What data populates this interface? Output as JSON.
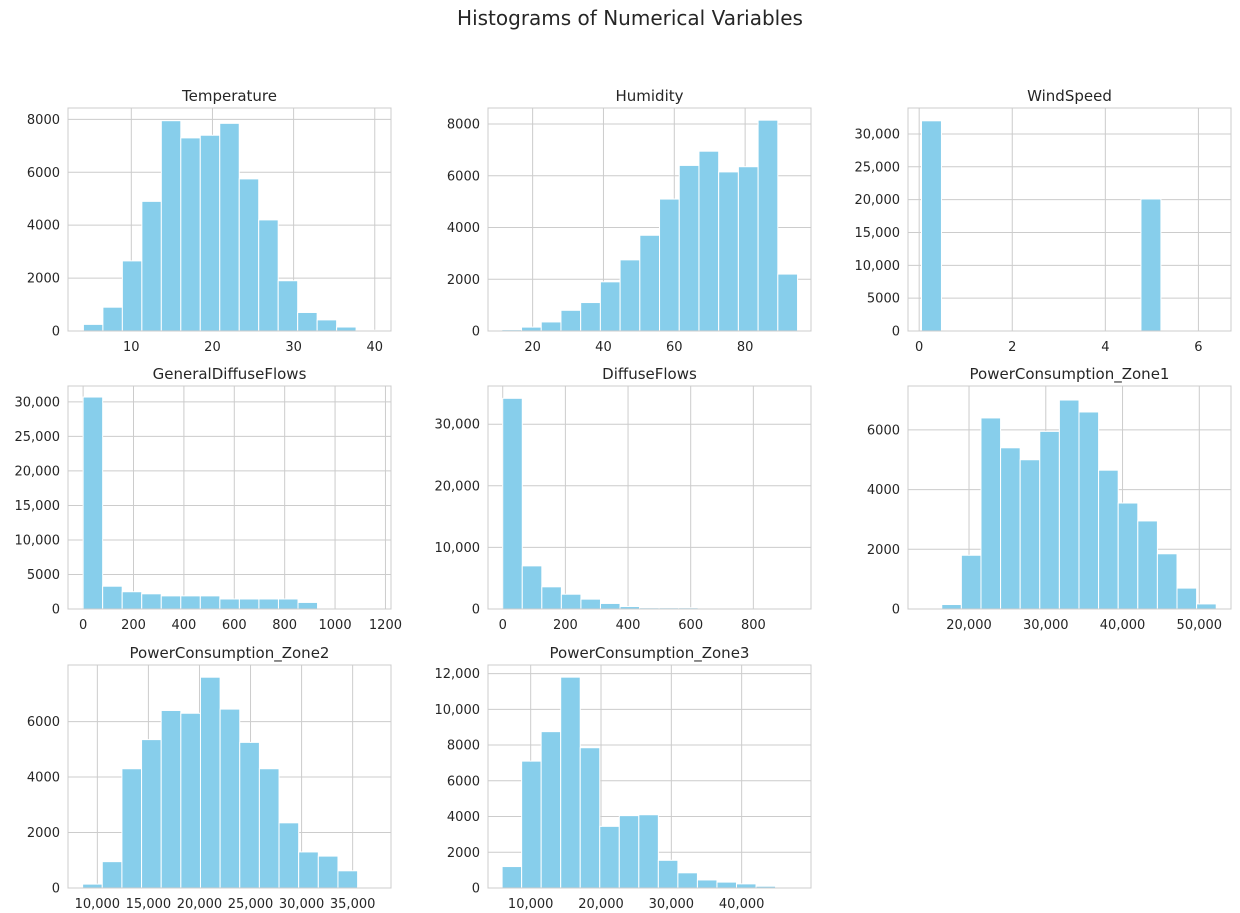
{
  "chart_data": {
    "type": "bar",
    "title": "Histograms of Numerical Variables",
    "bar_color": "#87CEEB",
    "bar_edge_color": "#ffffff",
    "grid_color": "#cccccc",
    "text_color": "#262626",
    "grid": true,
    "subplots": [
      {
        "title": "Temperature",
        "bins": 15,
        "range": [
          4.1,
          40.1
        ],
        "counts": [
          250,
          900,
          2650,
          4900,
          7950,
          7300,
          7400,
          7850,
          5750,
          4200,
          1900,
          700,
          420,
          150,
          30
        ],
        "xlim": [
          2.2,
          42.0
        ],
        "ylim": [
          0,
          8430
        ],
        "xticks": [
          {
            "v": 10,
            "label": "10"
          },
          {
            "v": 20,
            "label": "20"
          },
          {
            "v": 30,
            "label": "30"
          },
          {
            "v": 40,
            "label": "40"
          }
        ],
        "yticks": [
          {
            "v": 0,
            "label": "0"
          },
          {
            "v": 2000,
            "label": "2000"
          },
          {
            "v": 4000,
            "label": "4000"
          },
          {
            "v": 6000,
            "label": "6000"
          },
          {
            "v": 8000,
            "label": "8000"
          }
        ]
      },
      {
        "title": "Humidity",
        "bins": 15,
        "range": [
          11.3,
          94.8
        ],
        "counts": [
          50,
          150,
          350,
          800,
          1100,
          1900,
          2750,
          3700,
          5100,
          6400,
          6950,
          6150,
          6350,
          8150,
          2200
        ],
        "xlim": [
          7.4,
          98.6
        ],
        "ylim": [
          0,
          8620
        ],
        "xticks": [
          {
            "v": 20,
            "label": "20"
          },
          {
            "v": 40,
            "label": "40"
          },
          {
            "v": 60,
            "label": "60"
          },
          {
            "v": 80,
            "label": "80"
          }
        ],
        "yticks": [
          {
            "v": 0,
            "label": "0"
          },
          {
            "v": 2000,
            "label": "2000"
          },
          {
            "v": 4000,
            "label": "4000"
          },
          {
            "v": 6000,
            "label": "6000"
          },
          {
            "v": 8000,
            "label": "8000"
          }
        ]
      },
      {
        "title": "WindSpeed",
        "bins": 15,
        "range": [
          0.05,
          6.48
        ],
        "counts": [
          32000,
          5,
          0,
          0,
          0,
          0,
          0,
          0,
          0,
          0,
          0,
          20100,
          0,
          0,
          0
        ],
        "xlim": [
          -0.24,
          6.7
        ],
        "ylim": [
          0,
          33950
        ],
        "xticks": [
          {
            "v": 0,
            "label": "0"
          },
          {
            "v": 2,
            "label": "2"
          },
          {
            "v": 4,
            "label": "4"
          },
          {
            "v": 6,
            "label": "6"
          }
        ],
        "yticks": [
          {
            "v": 0,
            "label": "0"
          },
          {
            "v": 5000,
            "label": "5000"
          },
          {
            "v": 10000,
            "label": "10,000"
          },
          {
            "v": 15000,
            "label": "15,000"
          },
          {
            "v": 20000,
            "label": "20,000"
          },
          {
            "v": 25000,
            "label": "25,000"
          },
          {
            "v": 30000,
            "label": "30,000"
          }
        ]
      },
      {
        "title": "GeneralDiffuseFlows",
        "bins": 15,
        "range": [
          0.004,
          1163
        ],
        "counts": [
          30700,
          3300,
          2500,
          2200,
          1900,
          1900,
          1900,
          1450,
          1450,
          1450,
          1450,
          950,
          10,
          5,
          3
        ],
        "xlim": [
          -60,
          1222
        ],
        "ylim": [
          0,
          32300
        ],
        "xticks": [
          {
            "v": 0,
            "label": "0"
          },
          {
            "v": 200,
            "label": "200"
          },
          {
            "v": 400,
            "label": "400"
          },
          {
            "v": 600,
            "label": "600"
          },
          {
            "v": 800,
            "label": "800"
          },
          {
            "v": 1000,
            "label": "1000"
          },
          {
            "v": 1200,
            "label": "1200"
          }
        ],
        "yticks": [
          {
            "v": 0,
            "label": "0"
          },
          {
            "v": 5000,
            "label": "5000"
          },
          {
            "v": 10000,
            "label": "10,000"
          },
          {
            "v": 15000,
            "label": "15,000"
          },
          {
            "v": 20000,
            "label": "20,000"
          },
          {
            "v": 25000,
            "label": "25,000"
          },
          {
            "v": 30000,
            "label": "30,000"
          }
        ]
      },
      {
        "title": "DiffuseFlows",
        "bins": 15,
        "range": [
          0.011,
          936
        ],
        "counts": [
          34200,
          7000,
          3600,
          2400,
          1600,
          900,
          400,
          200,
          200,
          200,
          50,
          20,
          10,
          5,
          3
        ],
        "xlim": [
          -47,
          984
        ],
        "ylim": [
          0,
          36200
        ],
        "xticks": [
          {
            "v": 0,
            "label": "0"
          },
          {
            "v": 200,
            "label": "200"
          },
          {
            "v": 400,
            "label": "400"
          },
          {
            "v": 600,
            "label": "600"
          },
          {
            "v": 800,
            "label": "800"
          }
        ],
        "yticks": [
          {
            "v": 0,
            "label": "0"
          },
          {
            "v": 10000,
            "label": "10,000"
          },
          {
            "v": 20000,
            "label": "20,000"
          },
          {
            "v": 30000,
            "label": "30,000"
          }
        ]
      },
      {
        "title": "PowerConsumption_Zone1",
        "bins": 15,
        "range": [
          13895,
          52204
        ],
        "counts": [
          5,
          150,
          1800,
          6400,
          5400,
          5000,
          5950,
          7000,
          6600,
          4650,
          3550,
          2950,
          1850,
          700,
          170
        ],
        "xlim": [
          12050,
          54130
        ],
        "ylim": [
          0,
          7470
        ],
        "xticks": [
          {
            "v": 20000,
            "label": "20,000"
          },
          {
            "v": 30000,
            "label": "30,000"
          },
          {
            "v": 40000,
            "label": "40,000"
          },
          {
            "v": 50000,
            "label": "50,000"
          }
        ],
        "yticks": [
          {
            "v": 0,
            "label": "0"
          },
          {
            "v": 2000,
            "label": "2000"
          },
          {
            "v": 4000,
            "label": "4000"
          },
          {
            "v": 6000,
            "label": "6000"
          }
        ]
      },
      {
        "title": "PowerConsumption_Zone2",
        "bins": 15,
        "range": [
          8560,
          37408
        ],
        "counts": [
          140,
          950,
          4300,
          5350,
          6400,
          6300,
          7600,
          6450,
          5250,
          4300,
          2350,
          1300,
          1150,
          620,
          10
        ],
        "xlim": [
          7127,
          38755
        ],
        "ylim": [
          0,
          8040
        ],
        "xticks": [
          {
            "v": 10000,
            "label": "10,000"
          },
          {
            "v": 15000,
            "label": "15,000"
          },
          {
            "v": 20000,
            "label": "20,000"
          },
          {
            "v": 25000,
            "label": "25,000"
          },
          {
            "v": 30000,
            "label": "30,000"
          },
          {
            "v": 35000,
            "label": "35,000"
          }
        ],
        "yticks": [
          {
            "v": 0,
            "label": "0"
          },
          {
            "v": 2000,
            "label": "2000"
          },
          {
            "v": 4000,
            "label": "4000"
          },
          {
            "v": 6000,
            "label": "6000"
          }
        ]
      },
      {
        "title": "PowerConsumption_Zone3",
        "bins": 15,
        "range": [
          5935,
          47598
        ],
        "counts": [
          1200,
          7100,
          8750,
          11800,
          7850,
          3450,
          4050,
          4100,
          1550,
          850,
          450,
          330,
          230,
          100,
          20
        ],
        "xlim": [
          3930,
          49860
        ],
        "ylim": [
          0,
          12480
        ],
        "xticks": [
          {
            "v": 10000,
            "label": "10,000"
          },
          {
            "v": 20000,
            "label": "20,000"
          },
          {
            "v": 30000,
            "label": "30,000"
          },
          {
            "v": 40000,
            "label": "40,000"
          }
        ],
        "yticks": [
          {
            "v": 0,
            "label": "0"
          },
          {
            "v": 2000,
            "label": "2000"
          },
          {
            "v": 4000,
            "label": "4000"
          },
          {
            "v": 6000,
            "label": "6000"
          },
          {
            "v": 8000,
            "label": "8000"
          },
          {
            "v": 10000,
            "label": "10,000"
          },
          {
            "v": 12000,
            "label": "12,000"
          }
        ]
      }
    ]
  }
}
